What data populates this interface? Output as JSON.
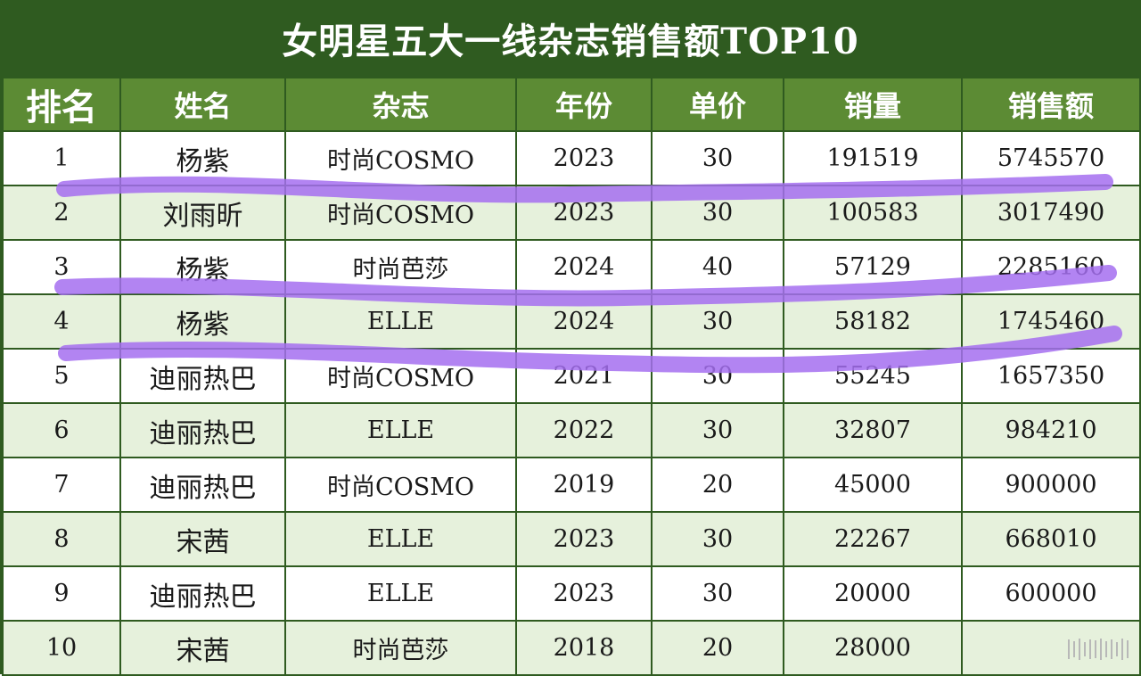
{
  "title": "女明星五大一线杂志销售额TOP10",
  "headers": [
    "排名",
    "姓名",
    "杂志",
    "年份",
    "单价",
    "销量",
    "销售额"
  ],
  "rows": [
    [
      "1",
      "杨紫",
      "时尚COSMO",
      "2023",
      "30",
      "191519",
      "5745570"
    ],
    [
      "2",
      "刘雨昕",
      "时尚COSMO",
      "2023",
      "30",
      "100583",
      "3017490"
    ],
    [
      "3",
      "杨紫",
      "时尚芭莎",
      "2024",
      "40",
      "57129",
      "2285160"
    ],
    [
      "4",
      "杨紫",
      "ELLE",
      "2024",
      "30",
      "58182",
      "1745460"
    ],
    [
      "5",
      "迪丽热巴",
      "时尚COSMO",
      "2021",
      "30",
      "55245",
      "1657350"
    ],
    [
      "6",
      "迪丽热巴",
      "ELLE",
      "2022",
      "30",
      "32807",
      "984210"
    ],
    [
      "7",
      "迪丽热巴",
      "时尚COSMO",
      "2019",
      "20",
      "45000",
      "900000"
    ],
    [
      "8",
      "宋茜",
      "ELLE",
      "2023",
      "30",
      "22267",
      "668010"
    ],
    [
      "9",
      "迪丽热巴",
      "ELLE",
      "2023",
      "30",
      "20000",
      "600000"
    ],
    [
      "10",
      "宋茜",
      "时尚芭莎",
      "2018",
      "20",
      "28000",
      ""
    ]
  ],
  "colors": {
    "frame": "#2f5b20",
    "header_bg": "#5c8b34",
    "row_alt": "#e6f1dc",
    "highlight_stroke": "#a46ff0"
  },
  "icons": {
    "watermark": "barcode-watermark-icon"
  }
}
